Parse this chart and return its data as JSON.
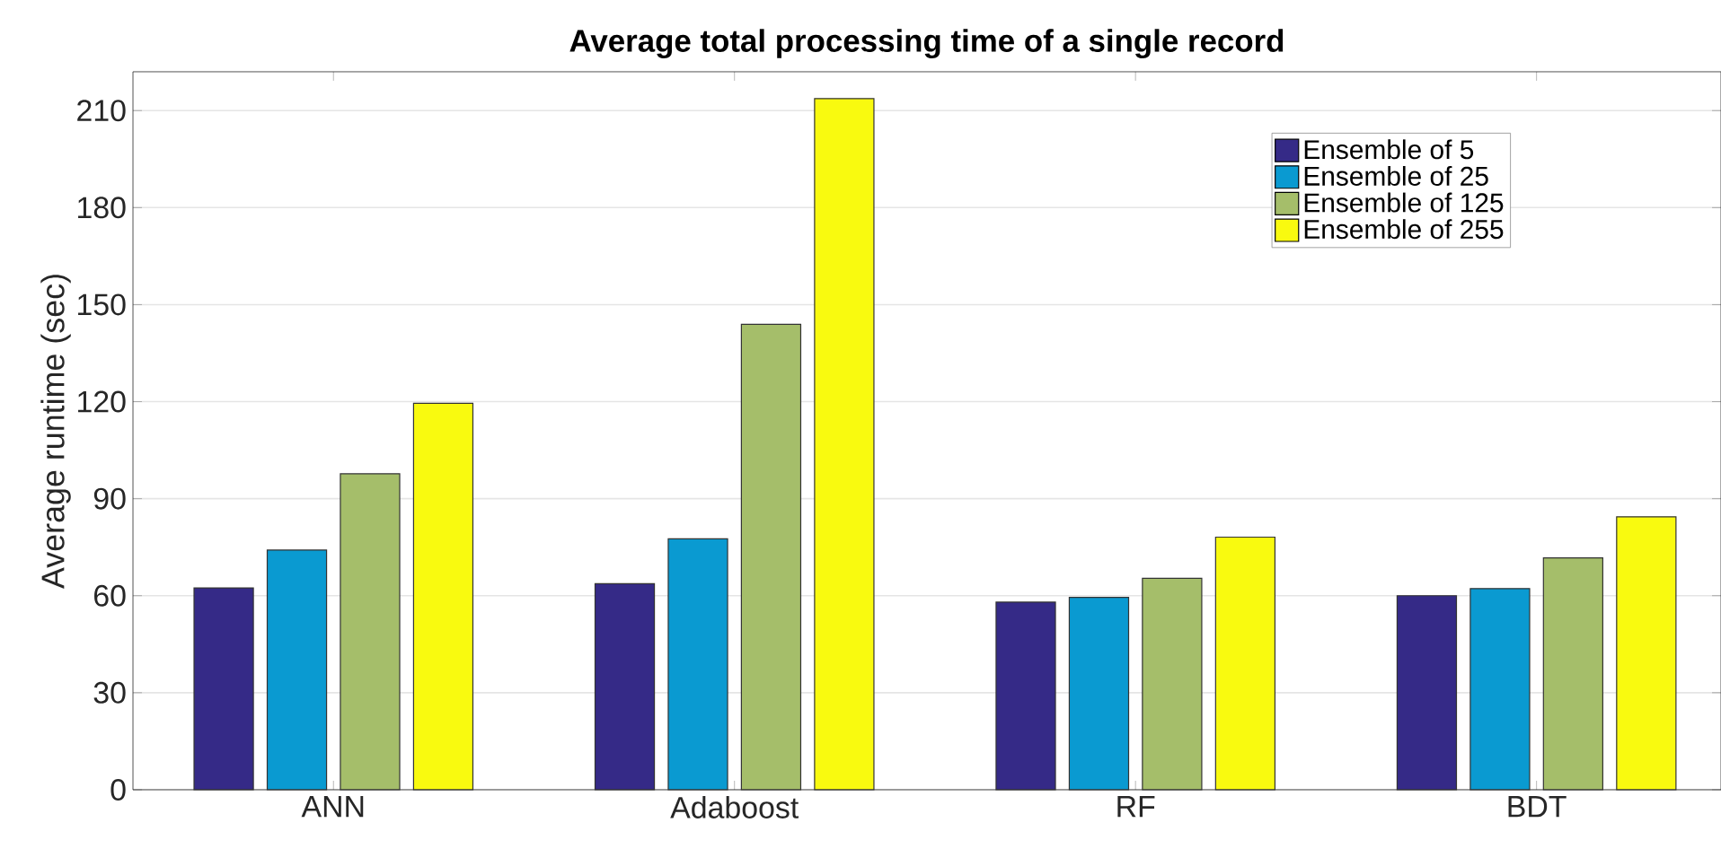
{
  "chart_data": {
    "type": "bar",
    "title": "Average total processing time of a single record",
    "ylabel": "Average runtime (sec)",
    "categories": [
      "ANN",
      "Adaboost",
      "RF",
      "BDT"
    ],
    "series": [
      {
        "name": "Ensemble of 5",
        "color": "#352a87",
        "values": [
          62.4,
          63.7,
          58.0,
          60.0
        ]
      },
      {
        "name": "Ensemble of 25",
        "color": "#0a9ad1",
        "values": [
          74.1,
          77.6,
          59.5,
          62.2
        ]
      },
      {
        "name": "Ensemble of 125",
        "color": "#a5be6a",
        "values": [
          97.7,
          143.9,
          65.4,
          71.7
        ]
      },
      {
        "name": "Ensemble of 255",
        "color": "#f9fa0f",
        "values": [
          119.5,
          213.7,
          78.1,
          84.4
        ]
      }
    ],
    "ylim": [
      0,
      222
    ],
    "yticks": [
      0,
      30,
      60,
      90,
      120,
      150,
      180,
      210
    ],
    "grid": "y",
    "legend": "top right"
  }
}
